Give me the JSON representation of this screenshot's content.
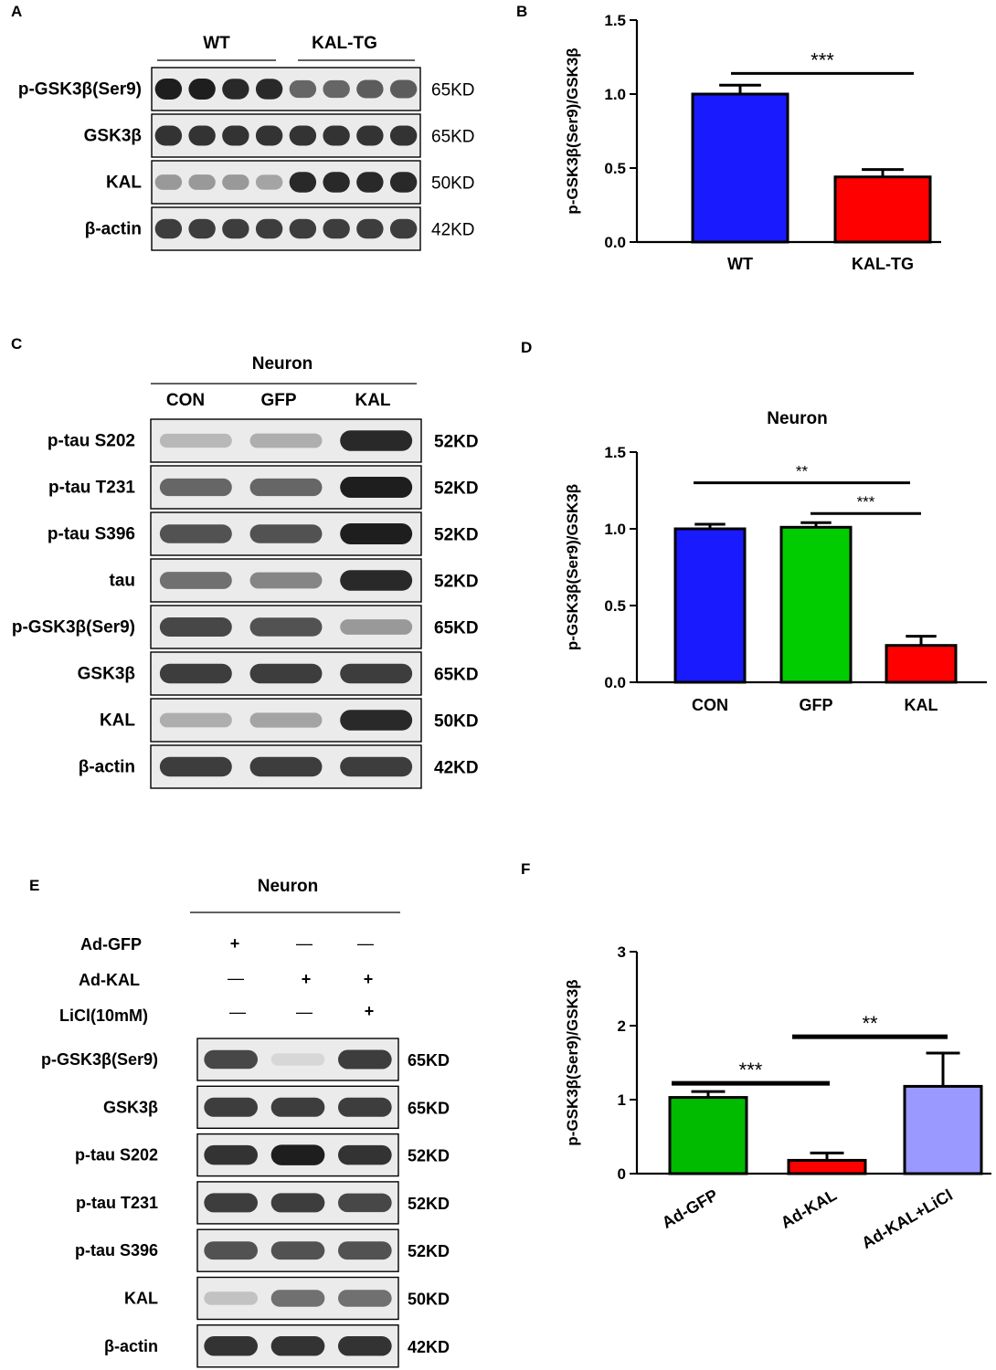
{
  "panel_letters": [
    "A",
    "B",
    "C",
    "D",
    "E",
    "F"
  ],
  "panel_a": {
    "groups": [
      "WT",
      "KAL-TG"
    ],
    "rows": [
      {
        "label": "p-GSK3β(Ser9)",
        "kd": "65KD",
        "intensity": [
          0.95,
          0.95,
          0.9,
          0.9,
          0.6,
          0.6,
          0.65,
          0.65
        ]
      },
      {
        "label": "GSK3β",
        "kd": "65KD",
        "intensity": [
          0.85,
          0.85,
          0.85,
          0.85,
          0.85,
          0.85,
          0.85,
          0.85
        ]
      },
      {
        "label": "KAL",
        "kd": "50KD",
        "intensity": [
          0.35,
          0.35,
          0.35,
          0.3,
          0.9,
          0.9,
          0.9,
          0.9
        ]
      },
      {
        "label": "β-actin",
        "kd": "42KD",
        "intensity": [
          0.8,
          0.8,
          0.8,
          0.8,
          0.8,
          0.8,
          0.8,
          0.8
        ]
      }
    ]
  },
  "panel_c": {
    "title": "Neuron",
    "lanes": [
      "CON",
      "GFP",
      "KAL"
    ],
    "rows": [
      {
        "label": "p-tau S202",
        "kd": "52KD",
        "intensity": [
          0.2,
          0.25,
          0.9
        ]
      },
      {
        "label": "p-tau T231",
        "kd": "52KD",
        "intensity": [
          0.6,
          0.6,
          0.95
        ]
      },
      {
        "label": "p-tau S396",
        "kd": "52KD",
        "intensity": [
          0.7,
          0.7,
          0.95
        ]
      },
      {
        "label": "tau",
        "kd": "52KD",
        "intensity": [
          0.55,
          0.45,
          0.9
        ]
      },
      {
        "label": "p-GSK3β(Ser9)",
        "kd": "65KD",
        "intensity": [
          0.75,
          0.7,
          0.35
        ]
      },
      {
        "label": "GSK3β",
        "kd": "65KD",
        "intensity": [
          0.8,
          0.8,
          0.8
        ]
      },
      {
        "label": "KAL",
        "kd": "50KD",
        "intensity": [
          0.25,
          0.3,
          0.9
        ]
      },
      {
        "label": "β-actin",
        "kd": "42KD",
        "intensity": [
          0.8,
          0.8,
          0.8
        ]
      }
    ]
  },
  "panel_e": {
    "title": "Neuron",
    "conditions": [
      {
        "label": "Ad-GFP",
        "marks": [
          "+",
          "—",
          "—"
        ]
      },
      {
        "label": "Ad-KAL",
        "marks": [
          "—",
          "+",
          "+"
        ]
      },
      {
        "label": "LiCl(10mM)",
        "marks": [
          "—",
          "—",
          "+"
        ]
      }
    ],
    "rows": [
      {
        "label": "p-GSK3β(Ser9)",
        "kd": "65KD",
        "intensity": [
          0.75,
          0.05,
          0.8
        ]
      },
      {
        "label": "GSK3β",
        "kd": "65KD",
        "intensity": [
          0.8,
          0.8,
          0.8
        ]
      },
      {
        "label": "p-tau S202",
        "kd": "52KD",
        "intensity": [
          0.85,
          0.95,
          0.85
        ]
      },
      {
        "label": "p-tau T231",
        "kd": "52KD",
        "intensity": [
          0.8,
          0.8,
          0.75
        ]
      },
      {
        "label": "p-tau S396",
        "kd": "52KD",
        "intensity": [
          0.7,
          0.7,
          0.7
        ]
      },
      {
        "label": "KAL",
        "kd": "50KD",
        "intensity": [
          0.15,
          0.55,
          0.55
        ]
      },
      {
        "label": "β-actin",
        "kd": "42KD",
        "intensity": [
          0.85,
          0.85,
          0.85
        ]
      }
    ]
  },
  "chart_data": [
    {
      "type": "bar",
      "panel": "B",
      "title": "",
      "ylabel": "p-GSK3β(Ser9)/GSK3β",
      "ylim": [
        0,
        1.5
      ],
      "yticks": [
        "0.0",
        "0.5",
        "1.0",
        "1.5"
      ],
      "categories": [
        "WT",
        "KAL-TG"
      ],
      "values": [
        1.0,
        0.44
      ],
      "errors": [
        0.06,
        0.05
      ],
      "colors": [
        "#1a1aff",
        "#ff0000"
      ],
      "annotations": [
        {
          "text": "***",
          "from": 0,
          "to": 1,
          "y": 1.14
        }
      ]
    },
    {
      "type": "bar",
      "panel": "D",
      "title": "Neuron",
      "ylabel": "p-GSK3β(Ser9)/GSK3β",
      "ylim": [
        0,
        1.5
      ],
      "yticks": [
        "0.0",
        "0.5",
        "1.0",
        "1.5"
      ],
      "categories": [
        "CON",
        "GFP",
        "KAL"
      ],
      "values": [
        1.0,
        1.01,
        0.24
      ],
      "errors": [
        0.03,
        0.03,
        0.06
      ],
      "colors": [
        "#1a1aff",
        "#00cc00",
        "#ff0000"
      ],
      "annotations": [
        {
          "text": "**",
          "from": 0,
          "to": 2,
          "y": 1.3
        },
        {
          "text": "***",
          "from": 1,
          "to": 2,
          "y": 1.1
        }
      ]
    },
    {
      "type": "bar",
      "panel": "F",
      "title": "",
      "ylabel": "p-GSK3β(Ser9)/GSK3β",
      "ylim": [
        0,
        3
      ],
      "yticks": [
        "0",
        "1",
        "2",
        "3"
      ],
      "categories": [
        "Ad-GFP",
        "Ad-KAL",
        "Ad-KAL+LiCl"
      ],
      "values": [
        1.03,
        0.18,
        1.18
      ],
      "errors": [
        0.08,
        0.1,
        0.45
      ],
      "colors": [
        "#00bb00",
        "#ff0000",
        "#9999ff"
      ],
      "annotations": [
        {
          "text": "***",
          "from": 0,
          "to": 1,
          "y": 1.22
        },
        {
          "text": "**",
          "from": 1,
          "to": 2,
          "y": 1.85
        }
      ]
    }
  ]
}
